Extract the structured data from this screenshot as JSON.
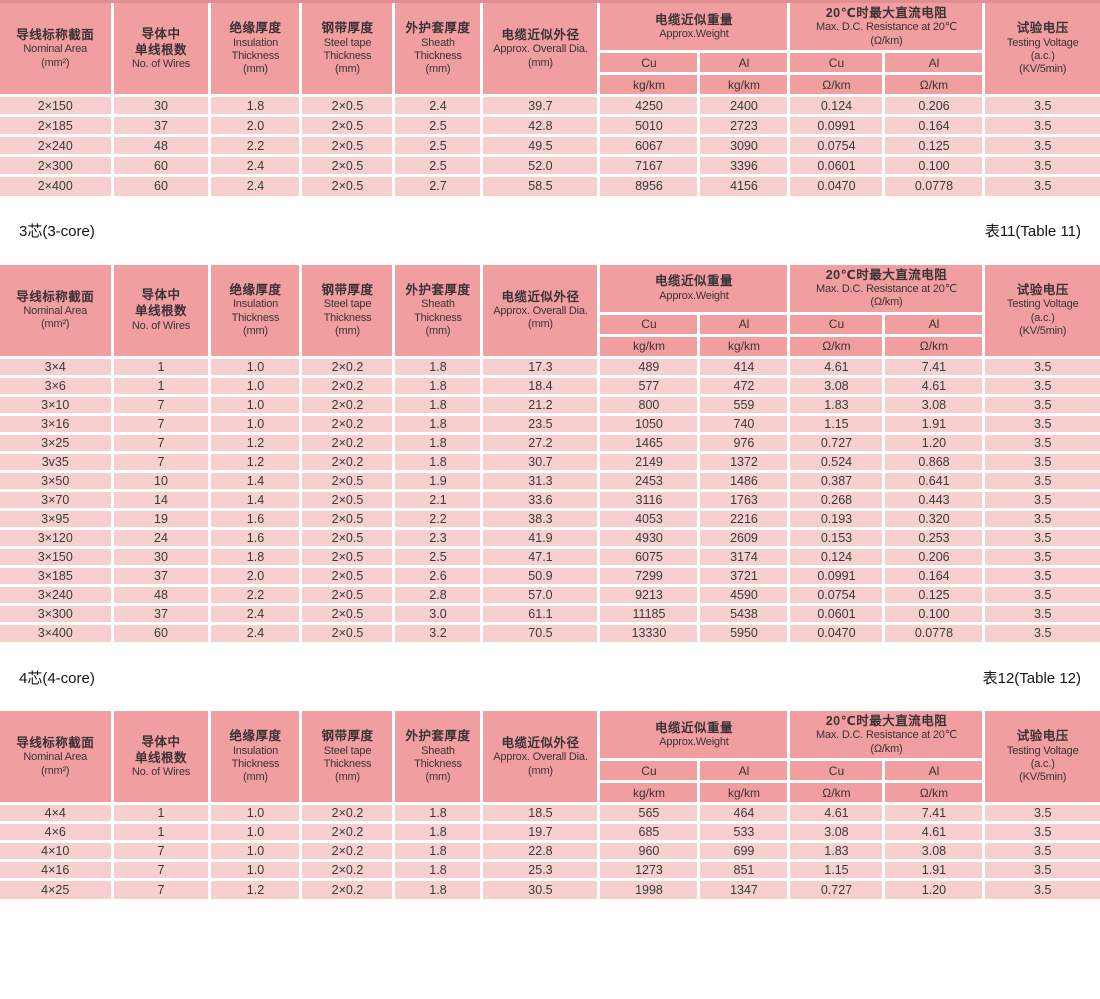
{
  "colors": {
    "header_bg": "#f09ea0",
    "row_bg": "#f8cfcf",
    "divider": "#ffffff",
    "top_edge": "#e18e91",
    "text": "#3a3a3a"
  },
  "table_header": {
    "columns": [
      {
        "id": "nominal-area",
        "zh": [
          "导线标称截面"
        ],
        "en": [
          "Nominal Area",
          "(mm²)"
        ]
      },
      {
        "id": "wires",
        "zh": [
          "导体中",
          "单线根数"
        ],
        "en": [
          "No. of Wires"
        ]
      },
      {
        "id": "insulation",
        "zh": [
          "绝缘厚度"
        ],
        "en": [
          "Insulation",
          "Thickness",
          "(mm)"
        ]
      },
      {
        "id": "steel-tape",
        "zh": [
          "钢带厚度"
        ],
        "en": [
          "Steel tape",
          "Thickness",
          "(mm)"
        ]
      },
      {
        "id": "sheath",
        "zh": [
          "外护套厚度"
        ],
        "en": [
          "Sheath",
          "Thickness",
          "(mm)"
        ]
      },
      {
        "id": "overall-dia",
        "zh": [
          "电缆近似外径"
        ],
        "en": [
          "Approx. Overall Dia.",
          "(mm)"
        ]
      },
      {
        "id": "weight",
        "zh": [
          "电缆近似重量"
        ],
        "en": [
          "Approx.Weight"
        ],
        "sub": [
          "Cu",
          "Al"
        ],
        "units": [
          "kg/km",
          "kg/km"
        ]
      },
      {
        "id": "resistance",
        "zh": [
          "20℃时最大直流电阻"
        ],
        "en": [
          "Max. D.C. Resistance at 20℃",
          "(Ω/km)"
        ],
        "sub": [
          "Cu",
          "Al"
        ],
        "units": [
          "Ω/km",
          "Ω/km"
        ]
      },
      {
        "id": "testing-voltage",
        "zh": [
          "试验电压"
        ],
        "en": [
          "Testing Voltage",
          "(a.c.)",
          "(KV/5min)"
        ]
      }
    ]
  },
  "sections": [
    {
      "name": "table-2core",
      "title_left": "",
      "title_right": "",
      "rows": [
        [
          "2×150",
          "30",
          "1.8",
          "2×0.5",
          "2.4",
          "39.7",
          "4250",
          "2400",
          "0.124",
          "0.206",
          "3.5"
        ],
        [
          "2×185",
          "37",
          "2.0",
          "2×0.5",
          "2.5",
          "42.8",
          "5010",
          "2723",
          "0.0991",
          "0.164",
          "3.5"
        ],
        [
          "2×240",
          "48",
          "2.2",
          "2×0.5",
          "2.5",
          "49.5",
          "6067",
          "3090",
          "0.0754",
          "0.125",
          "3.5"
        ],
        [
          "2×300",
          "60",
          "2.4",
          "2×0.5",
          "2.5",
          "52.0",
          "7167",
          "3396",
          "0.0601",
          "0.100",
          "3.5"
        ],
        [
          "2×400",
          "60",
          "2.4",
          "2×0.5",
          "2.7",
          "58.5",
          "8956",
          "4156",
          "0.0470",
          "0.0778",
          "3.5"
        ]
      ]
    },
    {
      "name": "table-3core",
      "title_left": "3芯(3-core)",
      "title_right": "表11(Table 11)",
      "rows": [
        [
          "3×4",
          "1",
          "1.0",
          "2×0.2",
          "1.8",
          "17.3",
          "489",
          "414",
          "4.61",
          "7.41",
          "3.5"
        ],
        [
          "3×6",
          "1",
          "1.0",
          "2×0.2",
          "1.8",
          "18.4",
          "577",
          "472",
          "3.08",
          "4.61",
          "3.5"
        ],
        [
          "3×10",
          "7",
          "1.0",
          "2×0.2",
          "1.8",
          "21.2",
          "800",
          "559",
          "1.83",
          "3.08",
          "3.5"
        ],
        [
          "3×16",
          "7",
          "1.0",
          "2×0.2",
          "1.8",
          "23.5",
          "1050",
          "740",
          "1.15",
          "1.91",
          "3.5"
        ],
        [
          "3×25",
          "7",
          "1.2",
          "2×0.2",
          "1.8",
          "27.2",
          "1465",
          "976",
          "0.727",
          "1.20",
          "3.5"
        ],
        [
          "3v35",
          "7",
          "1.2",
          "2×0.2",
          "1.8",
          "30.7",
          "2149",
          "1372",
          "0.524",
          "0.868",
          "3.5"
        ],
        [
          "3×50",
          "10",
          "1.4",
          "2×0.5",
          "1.9",
          "31.3",
          "2453",
          "1486",
          "0.387",
          "0.641",
          "3.5"
        ],
        [
          "3×70",
          "14",
          "1.4",
          "2×0.5",
          "2.1",
          "33.6",
          "3116",
          "1763",
          "0.268",
          "0.443",
          "3.5"
        ],
        [
          "3×95",
          "19",
          "1.6",
          "2×0.5",
          "2.2",
          "38.3",
          "4053",
          "2216",
          "0.193",
          "0.320",
          "3.5"
        ],
        [
          "3×120",
          "24",
          "1.6",
          "2×0.5",
          "2.3",
          "41.9",
          "4930",
          "2609",
          "0.153",
          "0.253",
          "3.5"
        ],
        [
          "3×150",
          "30",
          "1.8",
          "2×0.5",
          "2.5",
          "47.1",
          "6075",
          "3174",
          "0.124",
          "0.206",
          "3.5"
        ],
        [
          "3×185",
          "37",
          "2.0",
          "2×0.5",
          "2.6",
          "50.9",
          "7299",
          "3721",
          "0.0991",
          "0.164",
          "3.5"
        ],
        [
          "3×240",
          "48",
          "2.2",
          "2×0.5",
          "2.8",
          "57.0",
          "9213",
          "4590",
          "0.0754",
          "0.125",
          "3.5"
        ],
        [
          "3×300",
          "37",
          "2.4",
          "2×0.5",
          "3.0",
          "61.1",
          "11185",
          "5438",
          "0.0601",
          "0.100",
          "3.5"
        ],
        [
          "3×400",
          "60",
          "2.4",
          "2×0.5",
          "3.2",
          "70.5",
          "13330",
          "5950",
          "0.0470",
          "0.0778",
          "3.5"
        ]
      ]
    },
    {
      "name": "table-4core",
      "title_left": "4芯(4-core)",
      "title_right": "表12(Table 12)",
      "rows": [
        [
          "4×4",
          "1",
          "1.0",
          "2×0.2",
          "1.8",
          "18.5",
          "565",
          "464",
          "4.61",
          "7.41",
          "3.5"
        ],
        [
          "4×6",
          "1",
          "1.0",
          "2×0.2",
          "1.8",
          "19.7",
          "685",
          "533",
          "3.08",
          "4.61",
          "3.5"
        ],
        [
          "4×10",
          "7",
          "1.0",
          "2×0.2",
          "1.8",
          "22.8",
          "960",
          "699",
          "1.83",
          "3.08",
          "3.5"
        ],
        [
          "4×16",
          "7",
          "1.0",
          "2×0.2",
          "1.8",
          "25.3",
          "1273",
          "851",
          "1.15",
          "1.91",
          "3.5"
        ],
        [
          "4×25",
          "7",
          "1.2",
          "2×0.2",
          "1.8",
          "30.5",
          "1998",
          "1347",
          "0.727",
          "1.20",
          "3.5"
        ]
      ]
    }
  ]
}
